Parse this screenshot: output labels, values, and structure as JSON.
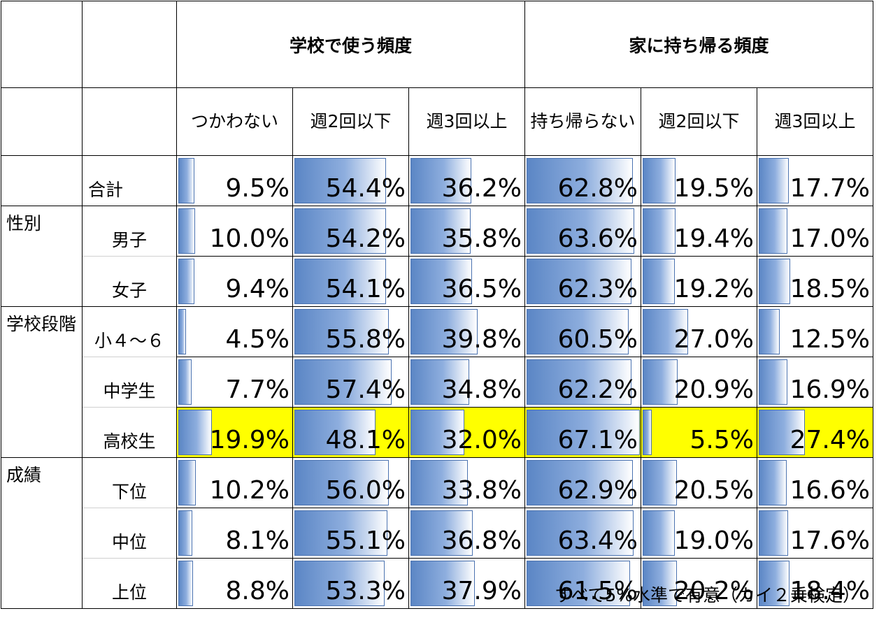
{
  "header": {
    "group1": "学校で使う頻度",
    "group2": "家に持ち帰る頻度",
    "columns": [
      "つかわない",
      "週2回以下",
      "週3回以上",
      "持ち帰らない",
      "週2回以下",
      "週3回以上"
    ]
  },
  "rows": [
    {
      "category": "",
      "sub": "合計",
      "highlight": false,
      "values": [
        "9.5%",
        "54.4%",
        "36.2%",
        "62.8%",
        "19.5%",
        "17.7%"
      ],
      "fractions": [
        0.095,
        0.544,
        0.362,
        0.628,
        0.195,
        0.177
      ]
    },
    {
      "category": "性別",
      "sub": "男子",
      "highlight": false,
      "values": [
        "10.0%",
        "54.2%",
        "35.8%",
        "63.6%",
        "19.4%",
        "17.0%"
      ],
      "fractions": [
        0.1,
        0.542,
        0.358,
        0.636,
        0.194,
        0.17
      ]
    },
    {
      "category": "",
      "sub": "女子",
      "highlight": false,
      "values": [
        "9.4%",
        "54.1%",
        "36.5%",
        "62.3%",
        "19.2%",
        "18.5%"
      ],
      "fractions": [
        0.094,
        0.541,
        0.365,
        0.623,
        0.192,
        0.185
      ]
    },
    {
      "category": "学校段階",
      "sub": "小４～６",
      "highlight": false,
      "values": [
        "4.5%",
        "55.8%",
        "39.8%",
        "60.5%",
        "27.0%",
        "12.5%"
      ],
      "fractions": [
        0.045,
        0.558,
        0.398,
        0.605,
        0.27,
        0.125
      ]
    },
    {
      "category": "",
      "sub": "中学生",
      "highlight": false,
      "values": [
        "7.7%",
        "57.4%",
        "34.8%",
        "62.2%",
        "20.9%",
        "16.9%"
      ],
      "fractions": [
        0.077,
        0.574,
        0.348,
        0.622,
        0.209,
        0.169
      ]
    },
    {
      "category": "",
      "sub": "高校生",
      "highlight": true,
      "values": [
        "19.9%",
        "48.1%",
        "32.0%",
        "67.1%",
        "5.5%",
        "27.4%"
      ],
      "fractions": [
        0.199,
        0.481,
        0.32,
        0.671,
        0.055,
        0.274
      ]
    },
    {
      "category": "成績",
      "sub": "下位",
      "highlight": false,
      "values": [
        "10.2%",
        "56.0%",
        "33.8%",
        "62.9%",
        "20.5%",
        "16.6%"
      ],
      "fractions": [
        0.102,
        0.56,
        0.338,
        0.629,
        0.205,
        0.166
      ]
    },
    {
      "category": "",
      "sub": "中位",
      "highlight": false,
      "values": [
        "8.1%",
        "55.1%",
        "36.8%",
        "63.4%",
        "19.0%",
        "17.6%"
      ],
      "fractions": [
        0.081,
        0.551,
        0.368,
        0.634,
        0.19,
        0.176
      ]
    },
    {
      "category": "",
      "sub": "上位",
      "highlight": false,
      "values": [
        "8.8%",
        "53.3%",
        "37.9%",
        "61.5%",
        "20.2%",
        "18.4%"
      ],
      "fractions": [
        0.088,
        0.533,
        0.379,
        0.615,
        0.202,
        0.184
      ]
    }
  ],
  "highlight_color": "#ffff00",
  "bar_color": "#5b86c5",
  "note": "すべて5%水準で有意（カイ２乗検定）"
}
